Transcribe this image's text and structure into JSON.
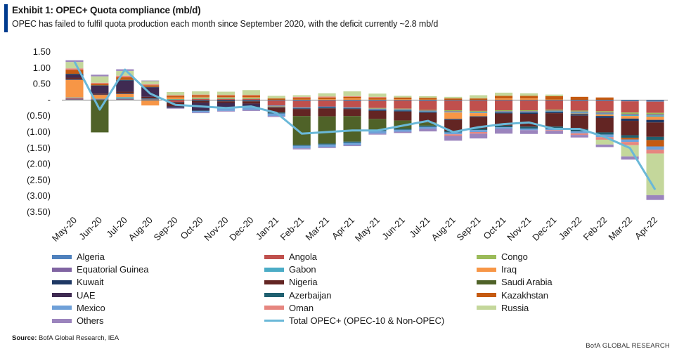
{
  "header": {
    "title": "Exhibit 1: OPEC+ Quota compliance (mb/d)",
    "subtitle": "OPEC has failed to fulfil quota production each month since September 2020, with the deficit currently ~2.8 mb/d"
  },
  "footer": {
    "source_label": "Source:",
    "source_text": "BofA Global Research, IEA",
    "brand": "BofA GLOBAL RESEARCH"
  },
  "chart_data": {
    "type": "bar",
    "stacked": true,
    "title": "Exhibit 1: OPEC+ Quota compliance (mb/d)",
    "ylim": [
      -3.5,
      1.5
    ],
    "yticks": [
      1.5,
      1.0,
      0.5,
      0,
      -0.5,
      -1.0,
      -1.5,
      -2.0,
      -2.5,
      -3.0,
      -3.5
    ],
    "ytick_labels": [
      "1.50",
      "1.00",
      "0.50",
      "-",
      "(0.50)",
      "(1.00)",
      "(1.50)",
      "(2.00)",
      "(2.50)",
      "(3.00)",
      "(3.50)"
    ],
    "grid": false,
    "legend_position": "bottom",
    "categories": [
      "May-20",
      "Jun-20",
      "Jul-20",
      "Aug-20",
      "Sep-20",
      "Oct-20",
      "Nov-20",
      "Dec-20",
      "Jan-21",
      "Feb-21",
      "Mar-21",
      "Apr-21",
      "May-21",
      "Jun-21",
      "Jul-21",
      "Aug-21",
      "Sep-21",
      "Oct-21",
      "Nov-21",
      "Dec-21",
      "Jan-22",
      "Feb-22",
      "Mar-22",
      "Apr-22"
    ],
    "series": [
      {
        "name": "Algeria",
        "color": "#4f81bd",
        "values": [
          0.02,
          -0.01,
          0.02,
          -0.02,
          -0.01,
          -0.01,
          -0.01,
          -0.02,
          -0.02,
          -0.03,
          -0.02,
          -0.03,
          -0.03,
          -0.02,
          -0.03,
          -0.02,
          -0.02,
          -0.02,
          -0.02,
          -0.02,
          -0.03,
          -0.03,
          -0.04,
          -0.05
        ]
      },
      {
        "name": "Angola",
        "color": "#c0504d",
        "values": [
          0.03,
          0.02,
          0.02,
          0.02,
          -0.05,
          0.03,
          0.03,
          0.03,
          -0.15,
          -0.2,
          -0.18,
          -0.2,
          -0.22,
          -0.25,
          -0.28,
          -0.3,
          -0.32,
          -0.3,
          -0.3,
          -0.28,
          -0.3,
          -0.32,
          -0.35,
          -0.35
        ]
      },
      {
        "name": "Congo",
        "color": "#9bbb59",
        "values": [
          0,
          0,
          0,
          0,
          0.02,
          0.02,
          0.02,
          0.02,
          0,
          0,
          0,
          0,
          -0.02,
          -0.02,
          -0.02,
          -0.03,
          -0.03,
          -0.03,
          -0.03,
          -0.03,
          -0.03,
          -0.04,
          -0.05,
          -0.05
        ]
      },
      {
        "name": "Equatorial Guinea",
        "color": "#8064a2",
        "values": [
          0.01,
          0,
          0,
          0,
          0,
          0,
          0,
          0,
          -0.01,
          -0.01,
          -0.01,
          -0.01,
          -0.02,
          -0.02,
          -0.02,
          -0.02,
          -0.02,
          -0.02,
          -0.02,
          -0.02,
          -0.03,
          -0.03,
          -0.03,
          -0.03
        ]
      },
      {
        "name": "Gabon",
        "color": "#4bacc6",
        "values": [
          0.02,
          0.02,
          0.05,
          0.02,
          0.01,
          0.02,
          0.02,
          0.01,
          -0.02,
          -0.02,
          -0.02,
          -0.02,
          -0.02,
          -0.02,
          -0.02,
          -0.02,
          -0.02,
          -0.02,
          -0.02,
          -0.02,
          -0.03,
          -0.03,
          -0.03,
          -0.04
        ]
      },
      {
        "name": "Iraq",
        "color": "#f79646",
        "values": [
          0.55,
          0.12,
          0.1,
          -0.15,
          0.05,
          0.03,
          0.02,
          0.03,
          -0.02,
          0.02,
          0.03,
          0.05,
          0.02,
          0.03,
          0.02,
          -0.2,
          -0.1,
          0.05,
          0.05,
          0.02,
          -0.02,
          -0.05,
          -0.08,
          -0.1
        ]
      },
      {
        "name": "Kuwait",
        "color": "#1f3864",
        "values": [
          0.02,
          0.01,
          0.02,
          0.01,
          -0.01,
          -0.02,
          -0.03,
          -0.02,
          -0.02,
          -0.02,
          -0.03,
          -0.02,
          -0.03,
          -0.03,
          -0.03,
          -0.03,
          -0.03,
          -0.03,
          -0.04,
          -0.04,
          -0.05,
          -0.06,
          -0.07,
          -0.08
        ]
      },
      {
        "name": "Nigeria",
        "color": "#632523",
        "values": [
          0.05,
          0.03,
          0.05,
          0.05,
          -0.12,
          -0.05,
          -0.05,
          -0.07,
          -0.15,
          -0.22,
          -0.25,
          -0.22,
          -0.25,
          -0.28,
          -0.3,
          -0.35,
          -0.35,
          -0.38,
          -0.4,
          -0.42,
          -0.42,
          -0.45,
          -0.45,
          -0.45
        ]
      },
      {
        "name": "Saudi Arabia",
        "color": "#4f6228",
        "values": [
          0,
          -1.0,
          0,
          0,
          0,
          0,
          0,
          0,
          0,
          -0.9,
          -0.85,
          -0.8,
          -0.35,
          -0.25,
          -0.1,
          0,
          0,
          0,
          0,
          0,
          0,
          0,
          0,
          0
        ]
      },
      {
        "name": "UAE",
        "color": "#3f2b52",
        "values": [
          0.1,
          0.25,
          0.35,
          0.3,
          -0.05,
          -0.25,
          -0.15,
          -0.1,
          0,
          0,
          0,
          0,
          0,
          0,
          0,
          0,
          0,
          0,
          0,
          0,
          0,
          0,
          0,
          0
        ]
      },
      {
        "name": "Azerbaijan",
        "color": "#1f6070",
        "values": [
          0.02,
          0.01,
          0.02,
          0.01,
          -0.01,
          -0.01,
          -0.02,
          -0.02,
          -0.03,
          -0.03,
          -0.03,
          -0.03,
          -0.03,
          -0.04,
          -0.04,
          -0.04,
          -0.05,
          -0.05,
          -0.06,
          -0.06,
          -0.07,
          -0.07,
          -0.08,
          -0.1
        ]
      },
      {
        "name": "Kazakhstan",
        "color": "#c55a11",
        "values": [
          0.12,
          0.05,
          0.08,
          0.05,
          0.05,
          0.05,
          0.05,
          0.05,
          0.05,
          0.05,
          0.05,
          0.05,
          0.05,
          0.05,
          0.05,
          0.05,
          0.05,
          0.08,
          0.08,
          0.1,
          0.1,
          0.08,
          -0.05,
          -0.2
        ]
      },
      {
        "name": "Mexico",
        "color": "#6fa0d8",
        "values": [
          0,
          0,
          0,
          0,
          0,
          -0.05,
          -0.08,
          -0.08,
          -0.08,
          -0.08,
          -0.08,
          -0.08,
          -0.08,
          -0.06,
          -0.06,
          -0.06,
          -0.06,
          -0.05,
          -0.05,
          -0.05,
          -0.06,
          -0.08,
          -0.08,
          -0.1
        ]
      },
      {
        "name": "Oman",
        "color": "#e6867f",
        "values": [
          0.05,
          0.03,
          0.05,
          0.03,
          0.02,
          0.02,
          0.02,
          0.02,
          0,
          0.03,
          0.03,
          0.02,
          0.03,
          0,
          0,
          -0.05,
          -0.05,
          0,
          0,
          -0.02,
          -0.05,
          -0.08,
          -0.1,
          -0.12
        ]
      },
      {
        "name": "Russia",
        "color": "#c4d79b",
        "values": [
          0.2,
          0.2,
          0.15,
          0.1,
          0.1,
          0.1,
          0.1,
          0.15,
          0.08,
          0.05,
          0.1,
          0.15,
          0.1,
          0.05,
          0.05,
          0.05,
          0.1,
          0.1,
          0.08,
          0.05,
          0,
          -0.15,
          -0.35,
          -1.3
        ]
      },
      {
        "name": "Others",
        "color": "#9b84bd",
        "values": [
          0.05,
          0.05,
          0.05,
          0.02,
          -0.02,
          -0.02,
          -0.02,
          -0.03,
          -0.03,
          -0.03,
          -0.03,
          -0.03,
          -0.03,
          -0.04,
          -0.08,
          -0.15,
          -0.15,
          -0.15,
          -0.12,
          -0.1,
          -0.08,
          -0.08,
          -0.1,
          -0.15
        ]
      }
    ],
    "line": {
      "name": "Total OPEC+ (OPEC-10 & Non-OPEC)",
      "color": "#6ab8d8",
      "values": [
        1.2,
        -0.3,
        0.95,
        0.2,
        -0.15,
        -0.2,
        -0.25,
        -0.2,
        -0.4,
        -1.05,
        -1.0,
        -0.95,
        -0.95,
        -0.8,
        -0.65,
        -1.0,
        -0.85,
        -0.75,
        -0.7,
        -0.9,
        -0.9,
        -1.15,
        -1.5,
        -2.8
      ]
    }
  }
}
